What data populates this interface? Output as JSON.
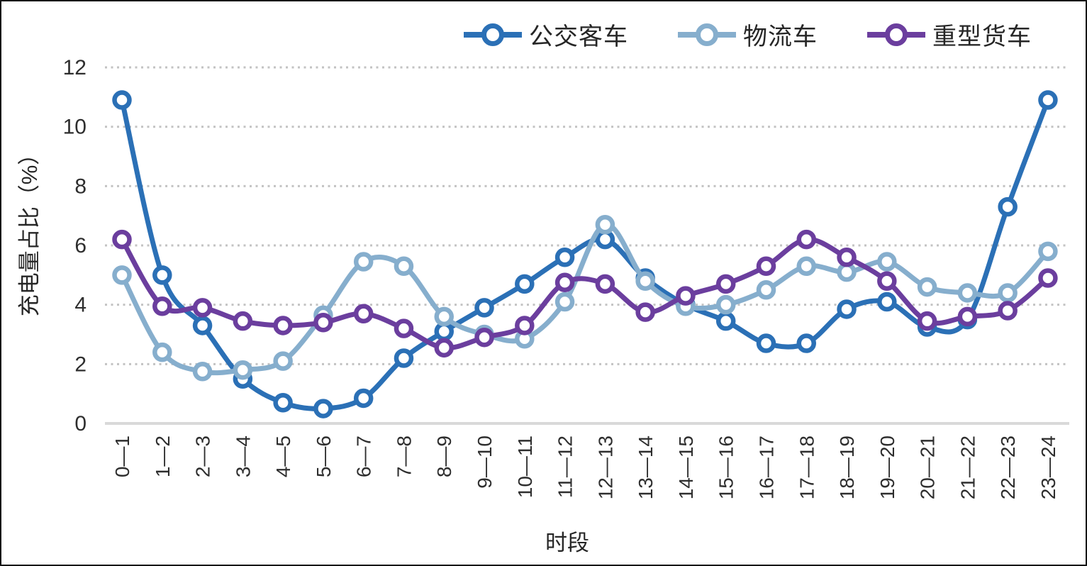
{
  "chart_data": {
    "type": "line",
    "title": "",
    "xlabel": "时段",
    "ylabel": "充电量占比（%）",
    "ylim": [
      0,
      12
    ],
    "yticks": [
      0,
      2,
      4,
      6,
      8,
      10,
      12
    ],
    "grid": "dotted-horizontal",
    "legend_position": "top-center",
    "marker": "open-circle",
    "line_style": "smooth",
    "categories": [
      "0—1",
      "1—2",
      "2—3",
      "3—4",
      "4—5",
      "5—6",
      "6—7",
      "7—8",
      "8—9",
      "9—10",
      "10—11",
      "11—12",
      "12—13",
      "13—14",
      "14—15",
      "15—16",
      "16—17",
      "17—18",
      "18—19",
      "19—20",
      "20—21",
      "21—22",
      "22—23",
      "23—24"
    ],
    "series": [
      {
        "name": "公交客车",
        "color": "#2B70B6",
        "values": [
          10.9,
          5.0,
          3.3,
          1.5,
          0.7,
          0.5,
          0.85,
          2.2,
          3.1,
          3.9,
          4.7,
          5.6,
          6.2,
          4.9,
          4.0,
          3.45,
          2.7,
          2.7,
          3.85,
          4.1,
          3.25,
          3.5,
          7.3,
          10.9
        ]
      },
      {
        "name": "物流车",
        "color": "#86AECD",
        "values": [
          5.0,
          2.4,
          1.75,
          1.8,
          2.1,
          3.65,
          5.45,
          5.3,
          3.6,
          3.0,
          2.85,
          4.1,
          6.7,
          4.8,
          3.95,
          4.0,
          4.5,
          5.3,
          5.1,
          5.45,
          4.6,
          4.4,
          4.4,
          5.8
        ]
      },
      {
        "name": "重型货车",
        "color": "#6B3E9E",
        "values": [
          6.2,
          3.95,
          3.9,
          3.45,
          3.3,
          3.4,
          3.7,
          3.2,
          2.55,
          2.9,
          3.3,
          4.75,
          4.7,
          3.75,
          4.3,
          4.7,
          5.3,
          6.2,
          5.6,
          4.8,
          3.45,
          3.6,
          3.8,
          4.9
        ]
      }
    ],
    "style_colors": {
      "grid": "#c3c3c3",
      "baseline": "#d9d9d9",
      "tick_text": "#2e2e2e",
      "marker_fill": "#ffffff"
    }
  }
}
